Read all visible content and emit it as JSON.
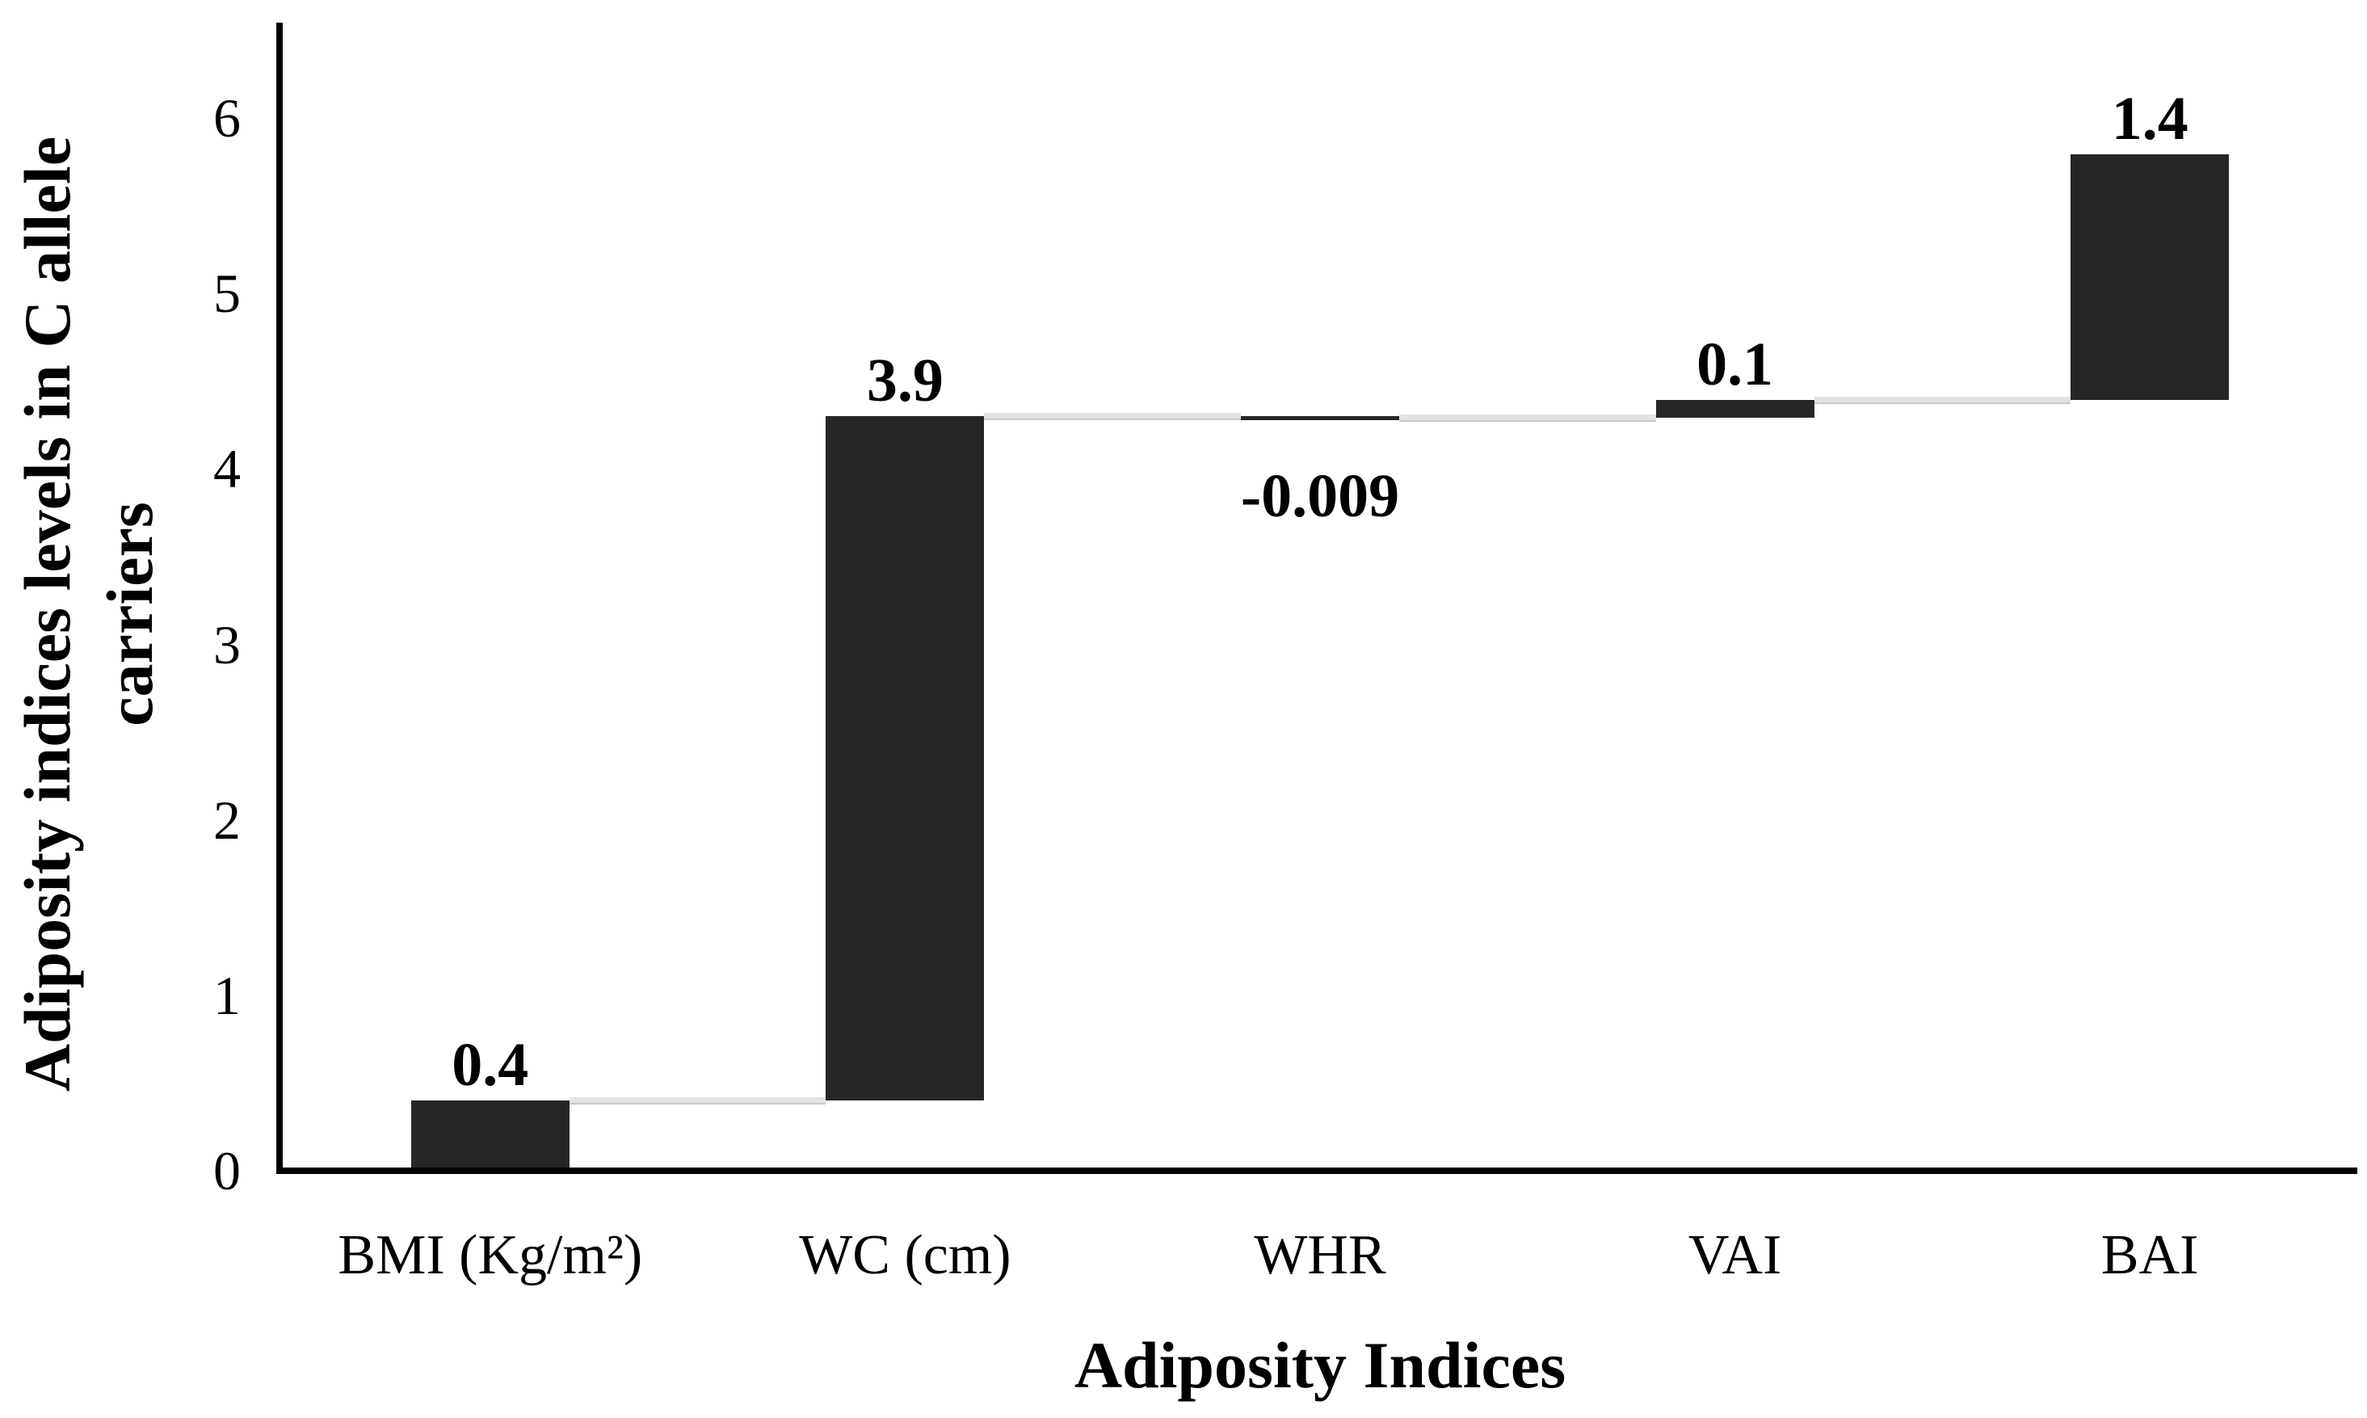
{
  "chart_data": {
    "type": "bar",
    "subtype": "waterfall",
    "title": "",
    "xlabel": "Adiposity Indices",
    "ylabel": "Adiposity indices levels in C allele carriers",
    "ylabel_lines": [
      "Adiposity indices levels in C allele",
      "carriers"
    ],
    "categories": [
      "BMI (Kg/m²)",
      "WC (cm)",
      "WHR",
      "VAI",
      "BAI"
    ],
    "values": [
      0.4,
      3.9,
      -0.009,
      0.1,
      1.4
    ],
    "value_labels": [
      "0.4",
      "3.9",
      "-0.009",
      "0.1",
      "1.4"
    ],
    "cumulative": [
      [
        0,
        0.4
      ],
      [
        0.4,
        4.3
      ],
      [
        4.3,
        4.291
      ],
      [
        4.291,
        4.391
      ],
      [
        4.391,
        5.791
      ]
    ],
    "ylim": [
      0,
      6
    ],
    "yticks": [
      0,
      1,
      2,
      3,
      4,
      5,
      6
    ],
    "ytick_labels": [
      "0",
      "1",
      "2",
      "3",
      "4",
      "5",
      "6"
    ],
    "grid": false,
    "legend": null,
    "bar_color": "#262626",
    "connector_color": "#e3e3e3",
    "axis_color": "#000000",
    "text_color": "#000000",
    "background_color": "#ffffff"
  }
}
